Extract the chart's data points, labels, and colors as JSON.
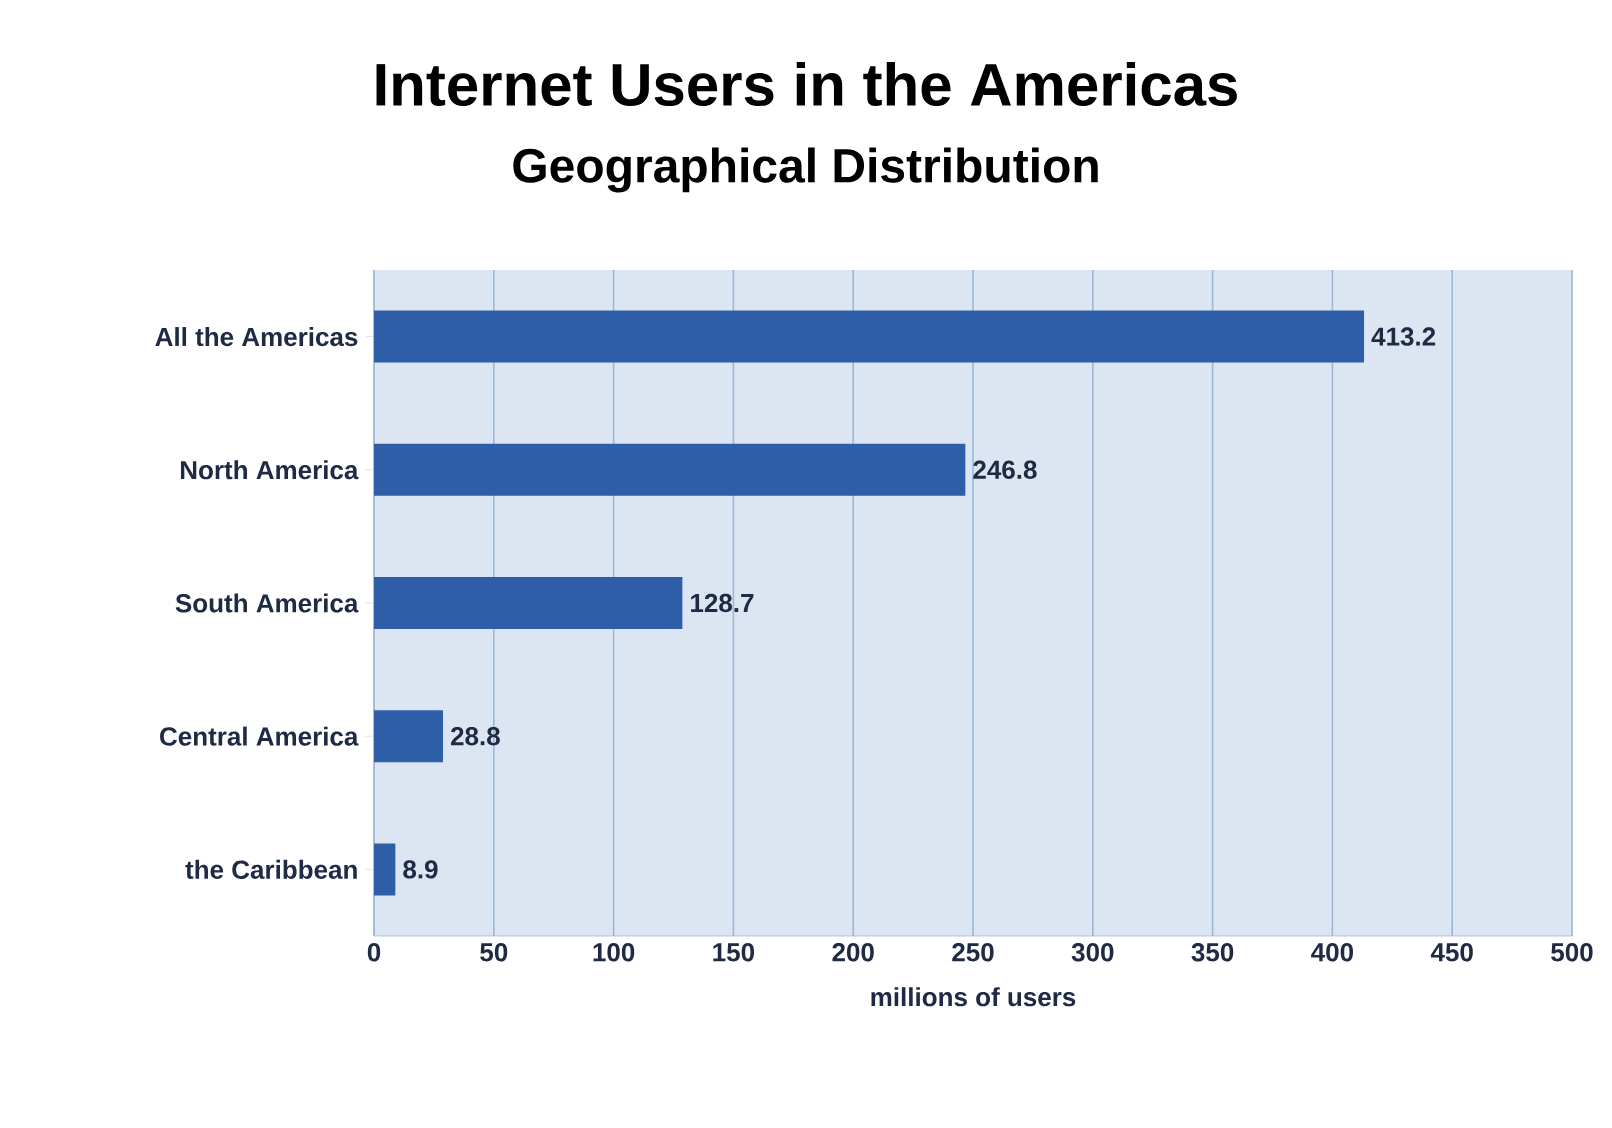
{
  "chart_data": {
    "type": "bar",
    "orientation": "horizontal",
    "title": "Internet Users in the Americas",
    "subtitle": "Geographical Distribution",
    "xlabel": "millions of users",
    "categories": [
      "All the Americas",
      "North America",
      "South America",
      "Central America",
      "the Caribbean"
    ],
    "values": [
      413.2,
      246.8,
      128.7,
      28.8,
      8.9
    ],
    "color": "#2f5ea8",
    "xlim": [
      0,
      500
    ],
    "xticks": [
      0,
      50,
      100,
      150,
      200,
      250,
      300,
      350,
      400,
      450,
      500
    ],
    "grid": "x",
    "data_labels": true
  }
}
